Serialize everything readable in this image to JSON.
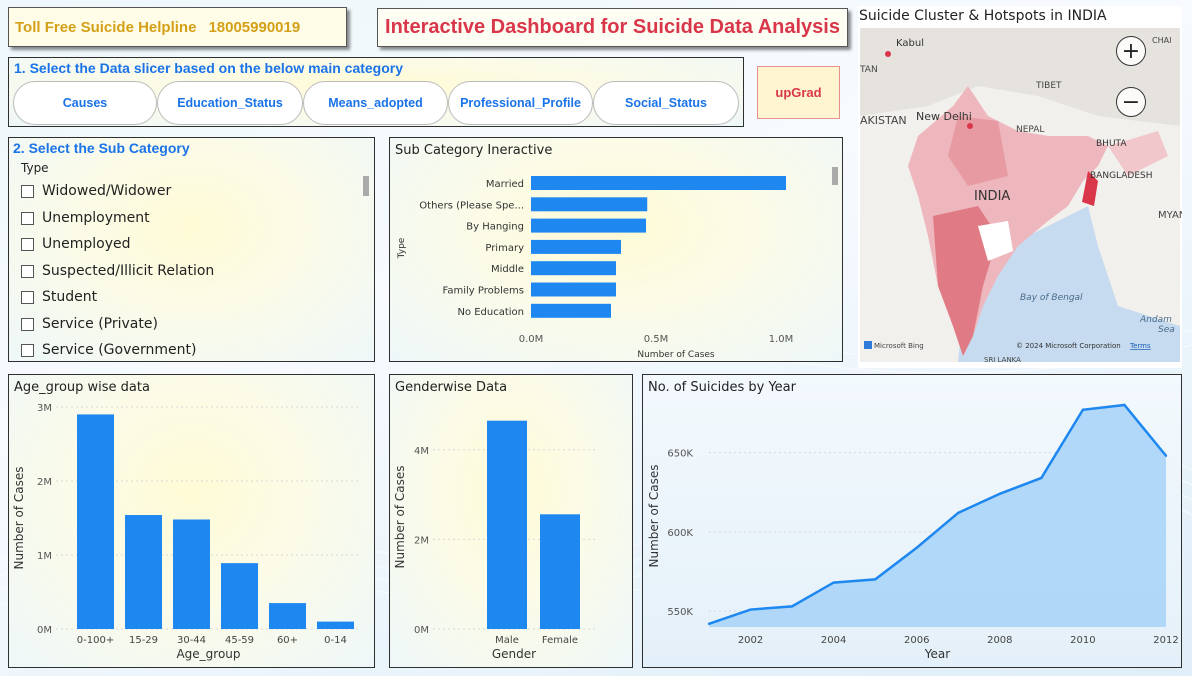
{
  "header": {
    "helpline_label": "Toll Free Suicide Helpline",
    "helpline_number": "18005990019",
    "dashboard_title": "Interactive Dashboard for Suicide Data Analysis"
  },
  "slicer_main": {
    "label": "1. Select the Data slicer based on the below main category",
    "buttons": [
      "Causes",
      "Education_Status",
      "Means_adopted",
      "Professional_Profile",
      "Social_Status"
    ]
  },
  "brand": {
    "label": "upGrad"
  },
  "slicer_sub": {
    "label": "2. Select the Sub Category",
    "field": "Type",
    "options": [
      "Widowed/Widower",
      "Unemployment",
      "Unemployed",
      "Suspected/Illicit Relation",
      "Student",
      "Service (Private)",
      "Service (Government)"
    ]
  },
  "map": {
    "title": "Suicide Cluster & Hotspots in INDIA",
    "zoom_in": "+",
    "zoom_out": "−",
    "labels": [
      "Kabul",
      "TAN",
      "AKISTAN",
      "New Delhi",
      "TIBET",
      "NEPAL",
      "BHUTA",
      "BANGLADESH",
      "INDIA",
      "MYANI",
      "Bay of Bengal",
      "Andam",
      "Sea",
      "SRI LANKA",
      "CHAI"
    ],
    "attribution": "© 2024 Microsoft Corporation",
    "terms": "Terms",
    "provider": "Microsoft Bing"
  },
  "colors": {
    "bar": "#1e88f0",
    "accent_blue": "#1a73e8",
    "accent_red": "#d9364a",
    "helpline": "#d4a017",
    "area_fill": "#a6d2f7"
  },
  "chart_data": [
    {
      "type": "bar",
      "orientation": "horizontal",
      "title": "Sub Category Ineractive",
      "xlabel": "Number of Cases",
      "ylabel": "Type",
      "categories": [
        "Married",
        "Others (Please Spe...",
        "By Hanging",
        "Primary",
        "Middle",
        "Family Problems",
        "No Education"
      ],
      "values": [
        1020000,
        465000,
        460000,
        360000,
        340000,
        340000,
        320000
      ],
      "xticks": [
        "0.0M",
        "0.5M",
        "1.0M"
      ],
      "xlim": [
        0,
        1200000
      ]
    },
    {
      "type": "bar",
      "title": "Age_group wise data",
      "xlabel": "Age_group",
      "ylabel": "Number of Cases",
      "categories": [
        "0-100+",
        "15-29",
        "30-44",
        "45-59",
        "60+",
        "0-14"
      ],
      "values": [
        2900000,
        1540000,
        1480000,
        890000,
        350000,
        100000
      ],
      "yticks": [
        "0M",
        "1M",
        "2M",
        "3M"
      ],
      "ylim": [
        0,
        3000000
      ]
    },
    {
      "type": "bar",
      "title": "Genderwise Data",
      "xlabel": "Gender",
      "ylabel": "Number of Cases",
      "categories": [
        "Male",
        "Female"
      ],
      "values": [
        4650000,
        2560000
      ],
      "yticks": [
        "0M",
        "2M",
        "4M"
      ],
      "ylim": [
        0,
        5000000
      ]
    },
    {
      "type": "area",
      "title": "No. of Suicides by Year",
      "xlabel": "Year",
      "ylabel": "Number of Cases",
      "x": [
        2001,
        2002,
        2003,
        2004,
        2005,
        2006,
        2007,
        2008,
        2009,
        2010,
        2011,
        2012
      ],
      "values": [
        542000,
        551000,
        553000,
        568000,
        570000,
        590000,
        612000,
        624000,
        634000,
        677000,
        680000,
        648000
      ],
      "xticks": [
        "2002",
        "2004",
        "2006",
        "2008",
        "2010",
        "2012"
      ],
      "yticks": [
        "550K",
        "600K",
        "650K"
      ],
      "ylim": [
        540000,
        680000
      ]
    }
  ]
}
